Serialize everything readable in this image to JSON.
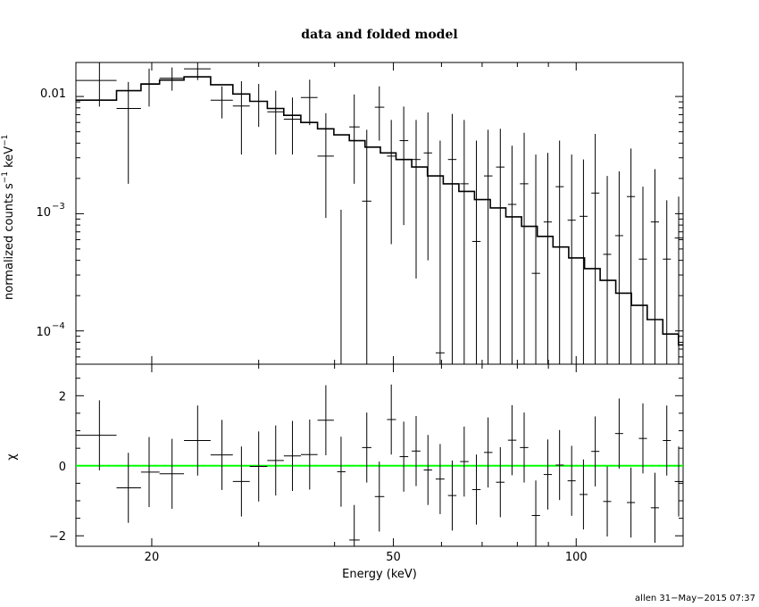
{
  "chart_data": [
    {
      "type": "line",
      "title": "data and folded model",
      "xlabel": "",
      "ylabel_main": "normalized counts s",
      "ylabel_sup1": "−1",
      "ylabel_mid": " keV",
      "ylabel_sup2": "−1",
      "xscale": "log",
      "yscale": "log",
      "xlim": [
        15,
        150
      ],
      "ylim": [
        5.2e-05,
        0.0195
      ],
      "ytick_labels": [
        {
          "base": "0.01",
          "exp": ""
        },
        {
          "base": "10",
          "exp": "−3"
        },
        {
          "base": "10",
          "exp": "−4"
        }
      ],
      "series": [
        {
          "style": "data-crosses",
          "points": [
            {
              "x": 16.4,
              "xlo": 15.0,
              "xhi": 17.5,
              "y": 0.0137,
              "ylo": 0.0082,
              "yhi": 0.0195
            },
            {
              "x": 18.3,
              "xlo": 17.5,
              "xhi": 19.2,
              "y": 0.0079,
              "ylo": 0.0018,
              "yhi": 0.0133
            },
            {
              "x": 19.8,
              "xlo": 19.2,
              "xhi": 20.6,
              "y": 0.0127,
              "ylo": 0.0082,
              "yhi": 0.0173
            },
            {
              "x": 21.6,
              "xlo": 20.6,
              "xhi": 22.6,
              "y": 0.0143,
              "ylo": 0.0112,
              "yhi": 0.0177
            },
            {
              "x": 23.8,
              "xlo": 22.6,
              "xhi": 25.0,
              "y": 0.0172,
              "ylo": 0.0138,
              "yhi": 0.0195
            },
            {
              "x": 26.1,
              "xlo": 25.0,
              "xhi": 27.2,
              "y": 0.0093,
              "ylo": 0.0065,
              "yhi": 0.0122
            },
            {
              "x": 28.1,
              "xlo": 27.2,
              "xhi": 29.0,
              "y": 0.0083,
              "ylo": 0.0032,
              "yhi": 0.0135
            },
            {
              "x": 30.0,
              "xlo": 29.0,
              "xhi": 31.0,
              "y": 0.0091,
              "ylo": 0.0055,
              "yhi": 0.0128
            },
            {
              "x": 32.0,
              "xlo": 31.0,
              "xhi": 33.0,
              "y": 0.0074,
              "ylo": 0.0032,
              "yhi": 0.0112
            },
            {
              "x": 34.1,
              "xlo": 33.0,
              "xhi": 35.2,
              "y": 0.0064,
              "ylo": 0.0032,
              "yhi": 0.0098
            },
            {
              "x": 36.4,
              "xlo": 35.2,
              "xhi": 37.5,
              "y": 0.0098,
              "ylo": 0.0057,
              "yhi": 0.0139
            },
            {
              "x": 38.7,
              "xlo": 37.5,
              "xhi": 39.9,
              "y": 0.0031,
              "ylo": 0.00092,
              "yhi": 0.0072
            },
            {
              "x": 41.0,
              "xlo": 40.4,
              "xhi": 41.7,
              "y": 5.2e-05,
              "ylo": 5.2e-05,
              "yhi": 0.00108
            },
            {
              "x": 43.1,
              "xlo": 42.3,
              "xhi": 44.0,
              "y": 0.0055,
              "ylo": 0.0018,
              "yhi": 0.0104
            },
            {
              "x": 45.2,
              "xlo": 44.4,
              "xhi": 46.0,
              "y": 0.00128,
              "ylo": 5.2e-05,
              "yhi": 0.0052
            },
            {
              "x": 47.4,
              "xlo": 46.6,
              "xhi": 48.3,
              "y": 0.0081,
              "ylo": 0.0042,
              "yhi": 0.0122
            },
            {
              "x": 49.6,
              "xlo": 48.8,
              "xhi": 50.5,
              "y": 0.0031,
              "ylo": 0.00055,
              "yhi": 0.0063
            },
            {
              "x": 52.0,
              "xlo": 51.2,
              "xhi": 52.9,
              "y": 0.0042,
              "ylo": 0.0008,
              "yhi": 0.0082
            },
            {
              "x": 54.5,
              "xlo": 53.6,
              "xhi": 55.4,
              "y": 0.0029,
              "ylo": 0.00028,
              "yhi": 0.0063
            },
            {
              "x": 57.0,
              "xlo": 56.1,
              "xhi": 57.9,
              "y": 0.0033,
              "ylo": 0.0004,
              "yhi": 0.0073
            },
            {
              "x": 59.7,
              "xlo": 58.7,
              "xhi": 60.7,
              "y": 6.5e-05,
              "ylo": 5.2e-05,
              "yhi": 0.0042
            },
            {
              "x": 62.5,
              "xlo": 61.5,
              "xhi": 63.5,
              "y": 0.0029,
              "ylo": 5.2e-05,
              "yhi": 0.0071
            },
            {
              "x": 65.4,
              "xlo": 64.4,
              "xhi": 66.5,
              "y": 0.0018,
              "ylo": 5.2e-05,
              "yhi": 0.0063
            },
            {
              "x": 68.5,
              "xlo": 67.4,
              "xhi": 69.6,
              "y": 0.00058,
              "ylo": 5.2e-05,
              "yhi": 0.0042
            },
            {
              "x": 71.6,
              "xlo": 70.5,
              "xhi": 72.8,
              "y": 0.0021,
              "ylo": 5.2e-05,
              "yhi": 0.0052
            },
            {
              "x": 75.0,
              "xlo": 73.8,
              "xhi": 76.2,
              "y": 0.0025,
              "ylo": 5.2e-05,
              "yhi": 0.0053
            },
            {
              "x": 78.4,
              "xlo": 77.2,
              "xhi": 79.7,
              "y": 0.0012,
              "ylo": 5.2e-05,
              "yhi": 0.0038
            },
            {
              "x": 82.1,
              "xlo": 80.8,
              "xhi": 83.4,
              "y": 0.0018,
              "ylo": 5.2e-05,
              "yhi": 0.0049
            },
            {
              "x": 85.8,
              "xlo": 84.5,
              "xhi": 87.2,
              "y": 0.00031,
              "ylo": 5.2e-05,
              "yhi": 0.0032
            },
            {
              "x": 89.8,
              "xlo": 88.4,
              "xhi": 91.2,
              "y": 0.00085,
              "ylo": 5.2e-05,
              "yhi": 0.0033
            },
            {
              "x": 93.9,
              "xlo": 92.5,
              "xhi": 95.4,
              "y": 0.0017,
              "ylo": 5.2e-05,
              "yhi": 0.0042
            },
            {
              "x": 98.3,
              "xlo": 96.8,
              "xhi": 99.8,
              "y": 0.00088,
              "ylo": 5.2e-05,
              "yhi": 0.0032
            },
            {
              "x": 102.8,
              "xlo": 101.3,
              "xhi": 104.4,
              "y": 0.00095,
              "ylo": 5.2e-05,
              "yhi": 0.0029
            },
            {
              "x": 107.5,
              "xlo": 105.9,
              "xhi": 109.2,
              "y": 0.0015,
              "ylo": 5.2e-05,
              "yhi": 0.0048
            },
            {
              "x": 112.5,
              "xlo": 110.8,
              "xhi": 114.2,
              "y": 0.00045,
              "ylo": 5.2e-05,
              "yhi": 0.0021
            },
            {
              "x": 117.7,
              "xlo": 115.9,
              "xhi": 119.5,
              "y": 0.00065,
              "ylo": 5.2e-05,
              "yhi": 0.0023
            },
            {
              "x": 123.1,
              "xlo": 121.2,
              "xhi": 125.0,
              "y": 0.0014,
              "ylo": 5.2e-05,
              "yhi": 0.0036
            },
            {
              "x": 128.8,
              "xlo": 126.8,
              "xhi": 130.8,
              "y": 0.00041,
              "ylo": 5.2e-05,
              "yhi": 0.0017
            },
            {
              "x": 134.8,
              "xlo": 132.7,
              "xhi": 136.9,
              "y": 0.00085,
              "ylo": 5.2e-05,
              "yhi": 0.0024
            },
            {
              "x": 141.0,
              "xlo": 138.9,
              "xhi": 143.2,
              "y": 0.00041,
              "ylo": 5.2e-05,
              "yhi": 0.0013
            },
            {
              "x": 147.5,
              "xlo": 145.3,
              "xhi": 149.8,
              "y": 0.00062,
              "ylo": 5.2e-05,
              "yhi": 0.0014
            }
          ]
        },
        {
          "style": "model-step",
          "edges": [
            15.0,
            17.5,
            19.2,
            20.6,
            22.6,
            25.0,
            27.2,
            29.0,
            31.0,
            33.0,
            35.2,
            37.5,
            39.9,
            42.3,
            44.9,
            47.6,
            50.5,
            53.6,
            56.9,
            60.4,
            64.1,
            68.0,
            72.2,
            76.6,
            81.3,
            86.3,
            91.6,
            97.2,
            103.2,
            109.5,
            116.2,
            123.3,
            130.9,
            138.9,
            147.4,
            150.0
          ],
          "values": [
            0.0093,
            0.0112,
            0.0128,
            0.0138,
            0.0147,
            0.0126,
            0.0105,
            0.0091,
            0.0079,
            0.0069,
            0.006,
            0.0053,
            0.0047,
            0.0042,
            0.0037,
            0.0033,
            0.0029,
            0.0025,
            0.0021,
            0.0018,
            0.00155,
            0.00132,
            0.00112,
            0.00094,
            0.00078,
            0.00064,
            0.00052,
            0.00042,
            0.00034,
            0.00027,
            0.00021,
            0.000165,
            0.000125,
            9.4e-05,
            7.6e-05
          ]
        }
      ]
    },
    {
      "type": "scatter",
      "xlabel": "Energy (keV)",
      "ylabel": "χ",
      "xscale": "log",
      "xlim": [
        15,
        150
      ],
      "ylim": [
        -2.3,
        2.9
      ],
      "yticks": [
        -2,
        0,
        2
      ],
      "ytick_labels": [
        "−2",
        "0",
        "2"
      ],
      "xticks": [
        20,
        50,
        100
      ],
      "xtick_labels": [
        "20",
        "50",
        "100"
      ],
      "zero_line_color": "#00ff00",
      "points": [
        {
          "x": 16.4,
          "xlo": 15.0,
          "xhi": 17.5,
          "y": 0.87,
          "ylo": -0.13,
          "yhi": 1.87
        },
        {
          "x": 18.3,
          "xlo": 17.5,
          "xhi": 19.2,
          "y": -0.63,
          "ylo": -1.63,
          "yhi": 0.37
        },
        {
          "x": 19.8,
          "xlo": 19.2,
          "xhi": 20.6,
          "y": -0.18,
          "ylo": -1.18,
          "yhi": 0.82
        },
        {
          "x": 21.6,
          "xlo": 20.6,
          "xhi": 22.6,
          "y": -0.23,
          "ylo": -1.23,
          "yhi": 0.77
        },
        {
          "x": 23.8,
          "xlo": 22.6,
          "xhi": 25.0,
          "y": 0.72,
          "ylo": -0.28,
          "yhi": 1.72
        },
        {
          "x": 26.1,
          "xlo": 25.0,
          "xhi": 27.2,
          "y": 0.31,
          "ylo": -0.69,
          "yhi": 1.31
        },
        {
          "x": 28.1,
          "xlo": 27.2,
          "xhi": 29.0,
          "y": -0.45,
          "ylo": -1.45,
          "yhi": 0.55
        },
        {
          "x": 30.0,
          "xlo": 29.0,
          "xhi": 31.0,
          "y": -0.02,
          "ylo": -1.02,
          "yhi": 0.98
        },
        {
          "x": 32.0,
          "xlo": 31.0,
          "xhi": 33.0,
          "y": 0.15,
          "ylo": -0.85,
          "yhi": 1.15
        },
        {
          "x": 34.1,
          "xlo": 33.0,
          "xhi": 35.2,
          "y": 0.28,
          "ylo": -0.72,
          "yhi": 1.28
        },
        {
          "x": 36.4,
          "xlo": 35.2,
          "xhi": 37.5,
          "y": 0.32,
          "ylo": -0.68,
          "yhi": 1.32
        },
        {
          "x": 38.7,
          "xlo": 37.5,
          "xhi": 39.9,
          "y": 1.3,
          "ylo": 0.3,
          "yhi": 2.3
        },
        {
          "x": 41.0,
          "xlo": 40.4,
          "xhi": 41.7,
          "y": -0.17,
          "ylo": -1.17,
          "yhi": 0.83
        },
        {
          "x": 43.1,
          "xlo": 42.3,
          "xhi": 44.0,
          "y": -2.12,
          "ylo": -2.3,
          "yhi": -1.12
        },
        {
          "x": 45.2,
          "xlo": 44.4,
          "xhi": 46.0,
          "y": 0.52,
          "ylo": -0.48,
          "yhi": 1.52
        },
        {
          "x": 47.4,
          "xlo": 46.6,
          "xhi": 48.3,
          "y": -0.88,
          "ylo": -1.88,
          "yhi": 0.12
        },
        {
          "x": 49.6,
          "xlo": 48.8,
          "xhi": 50.5,
          "y": 1.32,
          "ylo": 0.32,
          "yhi": 2.32
        },
        {
          "x": 52.0,
          "xlo": 51.2,
          "xhi": 52.9,
          "y": 0.26,
          "ylo": -0.74,
          "yhi": 1.26
        },
        {
          "x": 54.5,
          "xlo": 53.6,
          "xhi": 55.4,
          "y": 0.42,
          "ylo": -0.58,
          "yhi": 1.42
        },
        {
          "x": 57.0,
          "xlo": 56.1,
          "xhi": 57.9,
          "y": -0.12,
          "ylo": -1.12,
          "yhi": 0.88
        },
        {
          "x": 59.7,
          "xlo": 58.7,
          "xhi": 60.7,
          "y": -0.38,
          "ylo": -1.38,
          "yhi": 0.62
        },
        {
          "x": 62.5,
          "xlo": 61.5,
          "xhi": 63.5,
          "y": -0.85,
          "ylo": -1.85,
          "yhi": 0.15
        },
        {
          "x": 65.4,
          "xlo": 64.4,
          "xhi": 66.5,
          "y": 0.12,
          "ylo": -0.88,
          "yhi": 1.12
        },
        {
          "x": 68.5,
          "xlo": 67.4,
          "xhi": 69.6,
          "y": -0.68,
          "ylo": -1.68,
          "yhi": 0.32
        },
        {
          "x": 71.6,
          "xlo": 70.5,
          "xhi": 72.8,
          "y": 0.38,
          "ylo": -0.62,
          "yhi": 1.38
        },
        {
          "x": 75.0,
          "xlo": 73.8,
          "xhi": 76.2,
          "y": -0.47,
          "ylo": -1.47,
          "yhi": 0.53
        },
        {
          "x": 78.4,
          "xlo": 77.2,
          "xhi": 79.7,
          "y": 0.73,
          "ylo": -0.27,
          "yhi": 1.73
        },
        {
          "x": 82.1,
          "xlo": 80.8,
          "xhi": 83.4,
          "y": 0.52,
          "ylo": -0.48,
          "yhi": 1.52
        },
        {
          "x": 85.8,
          "xlo": 84.5,
          "xhi": 87.2,
          "y": -1.42,
          "ylo": -2.3,
          "yhi": -0.42
        },
        {
          "x": 89.8,
          "xlo": 88.4,
          "xhi": 91.2,
          "y": -0.25,
          "ylo": -1.25,
          "yhi": 0.75
        },
        {
          "x": 93.9,
          "xlo": 92.5,
          "xhi": 95.4,
          "y": 0.02,
          "ylo": -0.98,
          "yhi": 1.02
        },
        {
          "x": 98.3,
          "xlo": 96.8,
          "xhi": 99.8,
          "y": -0.43,
          "ylo": -1.43,
          "yhi": 0.57
        },
        {
          "x": 102.8,
          "xlo": 101.3,
          "xhi": 104.4,
          "y": -0.82,
          "ylo": -1.82,
          "yhi": 0.18
        },
        {
          "x": 107.5,
          "xlo": 105.9,
          "xhi": 109.2,
          "y": 0.41,
          "ylo": -0.59,
          "yhi": 1.41
        },
        {
          "x": 112.5,
          "xlo": 110.8,
          "xhi": 114.2,
          "y": -1.02,
          "ylo": -2.02,
          "yhi": -0.02
        },
        {
          "x": 117.7,
          "xlo": 115.9,
          "xhi": 119.5,
          "y": 0.92,
          "ylo": -0.08,
          "yhi": 1.92
        },
        {
          "x": 123.1,
          "xlo": 121.2,
          "xhi": 125.0,
          "y": -1.05,
          "ylo": -2.05,
          "yhi": -0.05
        },
        {
          "x": 128.8,
          "xlo": 126.8,
          "xhi": 130.8,
          "y": 0.78,
          "ylo": -0.22,
          "yhi": 1.78
        },
        {
          "x": 134.8,
          "xlo": 132.7,
          "xhi": 136.9,
          "y": -1.2,
          "ylo": -2.2,
          "yhi": -0.2
        },
        {
          "x": 141.0,
          "xlo": 138.9,
          "xhi": 143.2,
          "y": 0.72,
          "ylo": -0.28,
          "yhi": 1.72
        },
        {
          "x": 147.5,
          "xlo": 145.3,
          "xhi": 149.8,
          "y": -0.45,
          "ylo": -1.45,
          "yhi": 0.55
        }
      ]
    }
  ],
  "footer": {
    "text": "allen  31−May−2015 07:37"
  },
  "colors": {
    "data": "#000000",
    "model": "#000000",
    "zero_line": "#00ff00",
    "background": "#ffffff"
  }
}
